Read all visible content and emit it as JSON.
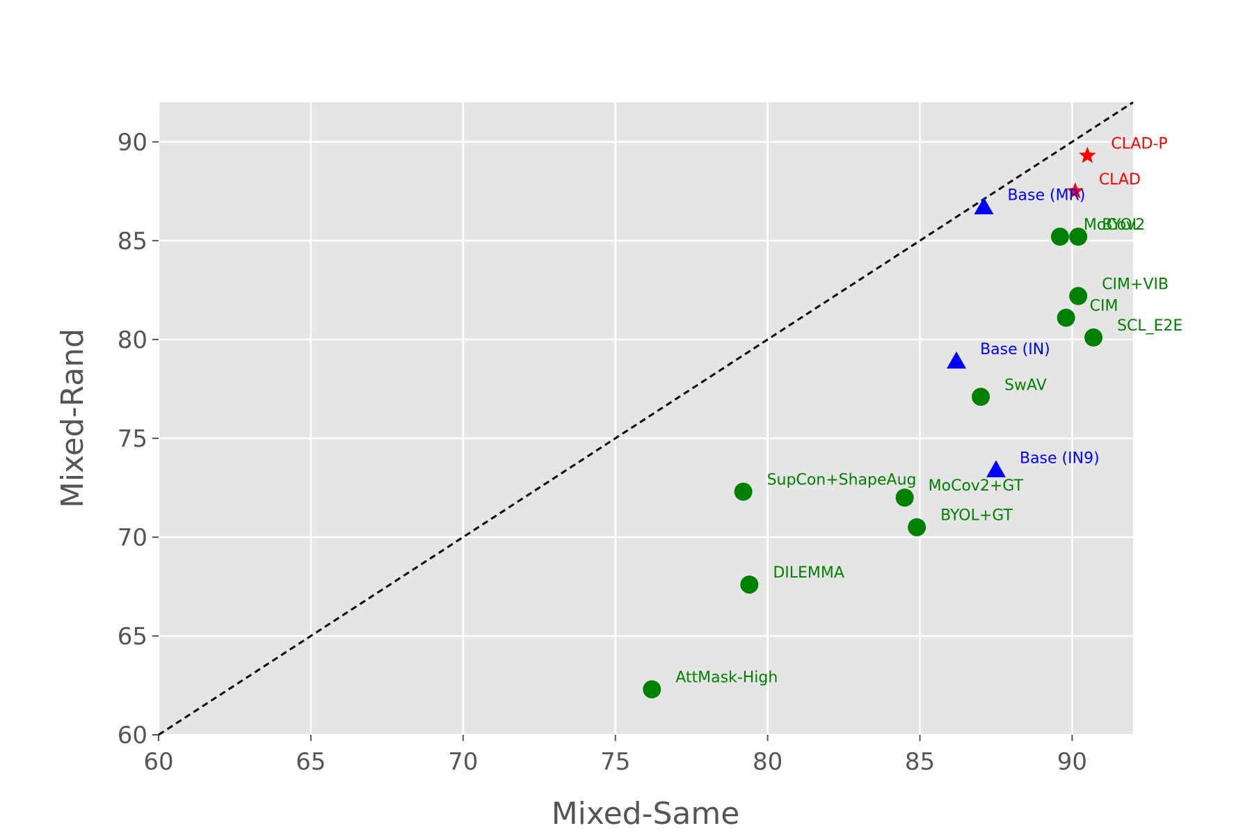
{
  "chart_data": {
    "type": "scatter",
    "xlabel": "Mixed-Same",
    "ylabel": "Mixed-Rand",
    "xlim": [
      60,
      92
    ],
    "ylim": [
      60,
      92
    ],
    "x_ticks": [
      60,
      65,
      70,
      75,
      80,
      85,
      90
    ],
    "y_ticks": [
      60,
      65,
      70,
      75,
      80,
      85,
      90
    ],
    "grid": true,
    "reference_line": {
      "style": "dashed",
      "color": "#000000",
      "from": [
        60,
        60
      ],
      "to": [
        92,
        92
      ]
    },
    "groups": [
      {
        "marker": "circle",
        "color": "#008000"
      },
      {
        "marker": "triangle",
        "color": "#0000ff"
      },
      {
        "marker": "star",
        "color": "#ff0000"
      }
    ],
    "points": [
      {
        "label": "MoCov2",
        "x": 89.6,
        "y": 85.2,
        "group": 0
      },
      {
        "label": "BYOL",
        "x": 90.2,
        "y": 85.2,
        "group": 0
      },
      {
        "label": "CIM+VIB",
        "x": 90.2,
        "y": 82.2,
        "group": 0
      },
      {
        "label": "CIM",
        "x": 89.8,
        "y": 81.1,
        "group": 0
      },
      {
        "label": "SCL_E2E",
        "x": 90.7,
        "y": 80.1,
        "group": 0
      },
      {
        "label": "SwAV",
        "x": 87.0,
        "y": 77.1,
        "group": 0
      },
      {
        "label": "SupCon+ShapeAug",
        "x": 79.2,
        "y": 72.3,
        "group": 0
      },
      {
        "label": "MoCov2+GT",
        "x": 84.5,
        "y": 72.0,
        "group": 0
      },
      {
        "label": "BYOL+GT",
        "x": 84.9,
        "y": 70.5,
        "group": 0
      },
      {
        "label": "DILEMMA",
        "x": 79.4,
        "y": 67.6,
        "group": 0
      },
      {
        "label": "AttMask-High",
        "x": 76.2,
        "y": 62.3,
        "group": 0
      },
      {
        "label": "Base (MR)",
        "x": 87.1,
        "y": 86.7,
        "group": 1
      },
      {
        "label": "Base (IN)",
        "x": 86.2,
        "y": 78.9,
        "group": 1
      },
      {
        "label": "Base (IN9)",
        "x": 87.5,
        "y": 73.4,
        "group": 1
      },
      {
        "label": "CLAD-P",
        "x": 90.5,
        "y": 89.3,
        "group": 2
      },
      {
        "label": "CLAD",
        "x": 90.1,
        "y": 87.5,
        "group": 2
      }
    ]
  }
}
